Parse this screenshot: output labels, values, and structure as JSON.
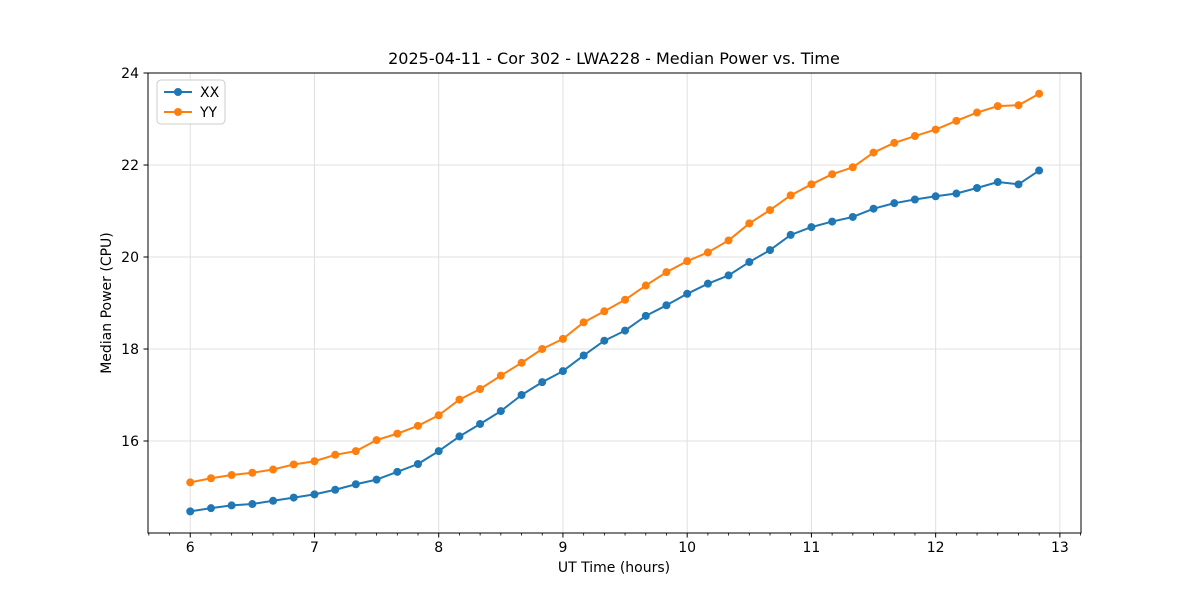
{
  "chart_data": {
    "type": "line",
    "title": "2025-04-11 - Cor 302 - LWA228 - Median Power vs. Time",
    "xlabel": "UT Time (hours)",
    "ylabel": "Median Power (CPU)",
    "xlim": [
      5.66,
      13.17
    ],
    "ylim": [
      14.0,
      24.0
    ],
    "x_ticks": [
      6,
      7,
      8,
      9,
      10,
      11,
      12,
      13
    ],
    "y_ticks": [
      16,
      18,
      20,
      22,
      24
    ],
    "x_minor_tick_step": 0.1667,
    "grid": true,
    "grid_color": "#e0e0e0",
    "legend_position": "upper-left",
    "background_color": "#ffffff",
    "x": [
      6.0,
      6.167,
      6.333,
      6.5,
      6.667,
      6.833,
      7.0,
      7.167,
      7.333,
      7.5,
      7.667,
      7.833,
      8.0,
      8.167,
      8.333,
      8.5,
      8.667,
      8.833,
      9.0,
      9.167,
      9.333,
      9.5,
      9.667,
      9.833,
      10.0,
      10.167,
      10.333,
      10.5,
      10.667,
      10.833,
      11.0,
      11.167,
      11.333,
      11.5,
      11.667,
      11.833,
      12.0,
      12.167,
      12.333,
      12.5,
      12.667,
      12.833
    ],
    "series": [
      {
        "name": "XX",
        "color": "#1f77b4",
        "marker": "circle",
        "values": [
          14.47,
          14.54,
          14.6,
          14.63,
          14.7,
          14.77,
          14.84,
          14.94,
          15.06,
          15.16,
          15.33,
          15.5,
          15.78,
          16.1,
          16.37,
          16.65,
          17.0,
          17.28,
          17.52,
          17.86,
          18.18,
          18.4,
          18.72,
          18.95,
          19.2,
          19.42,
          19.6,
          19.89,
          20.15,
          20.48,
          20.65,
          20.77,
          20.87,
          21.05,
          21.17,
          21.25,
          21.32,
          21.38,
          21.5,
          21.63,
          21.58,
          21.88
        ]
      },
      {
        "name": "YY",
        "color": "#ff7f0e",
        "marker": "circle",
        "values": [
          15.1,
          15.19,
          15.26,
          15.31,
          15.38,
          15.49,
          15.56,
          15.7,
          15.78,
          16.02,
          16.16,
          16.33,
          16.56,
          16.9,
          17.13,
          17.42,
          17.7,
          18.0,
          18.22,
          18.58,
          18.82,
          19.07,
          19.38,
          19.67,
          19.91,
          20.1,
          20.36,
          20.73,
          21.02,
          21.34,
          21.58,
          21.8,
          21.95,
          22.27,
          22.48,
          22.63,
          22.77,
          22.96,
          23.14,
          23.28,
          23.3,
          23.55
        ]
      }
    ]
  }
}
